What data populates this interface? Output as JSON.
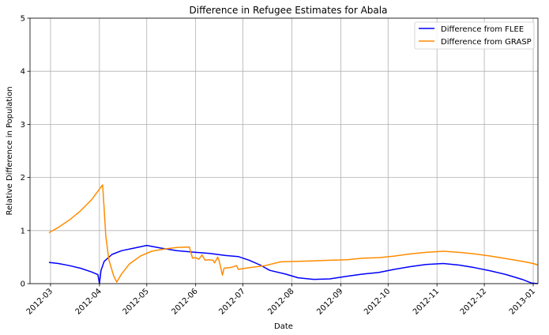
{
  "chart_data": {
    "type": "line",
    "title": "Difference in Refugee Estimates for Abala",
    "xlabel": "Date",
    "ylabel": "Relative Difference in Population",
    "ylim": [
      0,
      5
    ],
    "xlim": [
      "2012-02-17",
      "2013-01-04"
    ],
    "y_ticks": [
      0,
      1,
      2,
      3,
      4,
      5
    ],
    "x_ticks": [
      "2012-03",
      "2012-04",
      "2012-05",
      "2012-06",
      "2012-07",
      "2012-08",
      "2012-09",
      "2012-10",
      "2012-11",
      "2012-12",
      "2013-01"
    ],
    "x_tick_dates": [
      "2012-03-01",
      "2012-04-01",
      "2012-05-01",
      "2012-06-01",
      "2012-07-01",
      "2012-08-01",
      "2012-09-01",
      "2012-10-01",
      "2012-11-01",
      "2012-12-01",
      "2013-01-01"
    ],
    "grid": true,
    "legend_position": "top-right",
    "series": [
      {
        "name": "Difference from FLEE",
        "color": "#0000ff",
        "points": [
          [
            "2012-02-29",
            0.4
          ],
          [
            "2012-03-06",
            0.38
          ],
          [
            "2012-03-13",
            0.34
          ],
          [
            "2012-03-20",
            0.29
          ],
          [
            "2012-03-27",
            0.22
          ],
          [
            "2012-03-31",
            0.17
          ],
          [
            "2012-04-01",
            0.0
          ],
          [
            "2012-04-02",
            0.25
          ],
          [
            "2012-04-04",
            0.42
          ],
          [
            "2012-04-09",
            0.55
          ],
          [
            "2012-04-15",
            0.62
          ],
          [
            "2012-04-23",
            0.67
          ],
          [
            "2012-05-01",
            0.72
          ],
          [
            "2012-05-10",
            0.67
          ],
          [
            "2012-05-20",
            0.62
          ],
          [
            "2012-06-01",
            0.59
          ],
          [
            "2012-06-10",
            0.57
          ],
          [
            "2012-06-20",
            0.53
          ],
          [
            "2012-06-28",
            0.51
          ],
          [
            "2012-07-05",
            0.44
          ],
          [
            "2012-07-12",
            0.35
          ],
          [
            "2012-07-18",
            0.25
          ],
          [
            "2012-07-28",
            0.18
          ],
          [
            "2012-08-05",
            0.11
          ],
          [
            "2012-08-15",
            0.08
          ],
          [
            "2012-08-25",
            0.09
          ],
          [
            "2012-09-05",
            0.14
          ],
          [
            "2012-09-15",
            0.18
          ],
          [
            "2012-09-25",
            0.21
          ],
          [
            "2012-10-05",
            0.27
          ],
          [
            "2012-10-15",
            0.32
          ],
          [
            "2012-10-25",
            0.36
          ],
          [
            "2012-11-05",
            0.38
          ],
          [
            "2012-11-15",
            0.35
          ],
          [
            "2012-11-25",
            0.3
          ],
          [
            "2012-12-05",
            0.24
          ],
          [
            "2012-12-15",
            0.17
          ],
          [
            "2012-12-25",
            0.08
          ],
          [
            "2012-12-31",
            0.01
          ],
          [
            "2013-01-04",
            0.0
          ]
        ]
      },
      {
        "name": "Difference from GRASP",
        "color": "#ff8c00",
        "points": [
          [
            "2012-02-29",
            0.96
          ],
          [
            "2012-03-06",
            1.06
          ],
          [
            "2012-03-13",
            1.2
          ],
          [
            "2012-03-20",
            1.37
          ],
          [
            "2012-03-27",
            1.58
          ],
          [
            "2012-04-03",
            1.86
          ],
          [
            "2012-04-04",
            1.4
          ],
          [
            "2012-04-05",
            0.9
          ],
          [
            "2012-04-07",
            0.45
          ],
          [
            "2012-04-10",
            0.15
          ],
          [
            "2012-04-12",
            0.03
          ],
          [
            "2012-04-15",
            0.18
          ],
          [
            "2012-04-20",
            0.37
          ],
          [
            "2012-04-27",
            0.52
          ],
          [
            "2012-05-04",
            0.61
          ],
          [
            "2012-05-12",
            0.65
          ],
          [
            "2012-05-20",
            0.68
          ],
          [
            "2012-05-28",
            0.69
          ],
          [
            "2012-05-30",
            0.48
          ],
          [
            "2012-06-01",
            0.49
          ],
          [
            "2012-06-03",
            0.46
          ],
          [
            "2012-06-05",
            0.54
          ],
          [
            "2012-06-07",
            0.44
          ],
          [
            "2012-06-09",
            0.45
          ],
          [
            "2012-06-12",
            0.44
          ],
          [
            "2012-06-13",
            0.39
          ],
          [
            "2012-06-15",
            0.5
          ],
          [
            "2012-06-16",
            0.42
          ],
          [
            "2012-06-18",
            0.16
          ],
          [
            "2012-06-19",
            0.29
          ],
          [
            "2012-06-24",
            0.31
          ],
          [
            "2012-06-27",
            0.34
          ],
          [
            "2012-06-28",
            0.27
          ],
          [
            "2012-07-05",
            0.3
          ],
          [
            "2012-07-15",
            0.34
          ],
          [
            "2012-07-25",
            0.41
          ],
          [
            "2012-08-05",
            0.42
          ],
          [
            "2012-08-15",
            0.43
          ],
          [
            "2012-08-25",
            0.44
          ],
          [
            "2012-09-05",
            0.45
          ],
          [
            "2012-09-15",
            0.48
          ],
          [
            "2012-09-25",
            0.49
          ],
          [
            "2012-10-05",
            0.52
          ],
          [
            "2012-10-15",
            0.56
          ],
          [
            "2012-10-25",
            0.59
          ],
          [
            "2012-11-05",
            0.61
          ],
          [
            "2012-11-15",
            0.59
          ],
          [
            "2012-11-25",
            0.56
          ],
          [
            "2012-12-05",
            0.52
          ],
          [
            "2012-12-15",
            0.47
          ],
          [
            "2012-12-25",
            0.42
          ],
          [
            "2013-01-01",
            0.38
          ],
          [
            "2013-01-04",
            0.35
          ]
        ]
      }
    ]
  }
}
